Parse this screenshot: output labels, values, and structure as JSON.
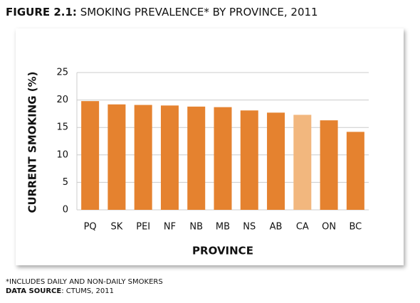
{
  "chart_data": {
    "type": "bar",
    "title_label": "FIGURE 2.1:",
    "title": " SMOKING PREVALENCE* BY PROVINCE, 2011",
    "x_label": "PROVINCE",
    "y_label": "CURRENT SMOKING (%)",
    "categories": [
      "PQ",
      "SK",
      "PEI",
      "NF",
      "NB",
      "MB",
      "NS",
      "AB",
      "CA",
      "ON",
      "BC"
    ],
    "values": [
      19.8,
      19.2,
      19.1,
      19.0,
      18.8,
      18.7,
      18.1,
      17.7,
      17.3,
      16.3,
      14.2
    ],
    "colors": [
      "#e5822f",
      "#e5822f",
      "#e5822f",
      "#e5822f",
      "#e5822f",
      "#e5822f",
      "#e5822f",
      "#e5822f",
      "#f2b77e",
      "#e5822f",
      "#e5822f"
    ],
    "ylim": [
      0,
      25
    ],
    "yticks": [
      0,
      5,
      10,
      15,
      20,
      25
    ],
    "grid": true,
    "footnote": "*INCLUDES DAILY AND NON-DAILY SMOKERS",
    "source_label": "DATA SOURCE",
    "source": ": CTUMS, 2011"
  }
}
